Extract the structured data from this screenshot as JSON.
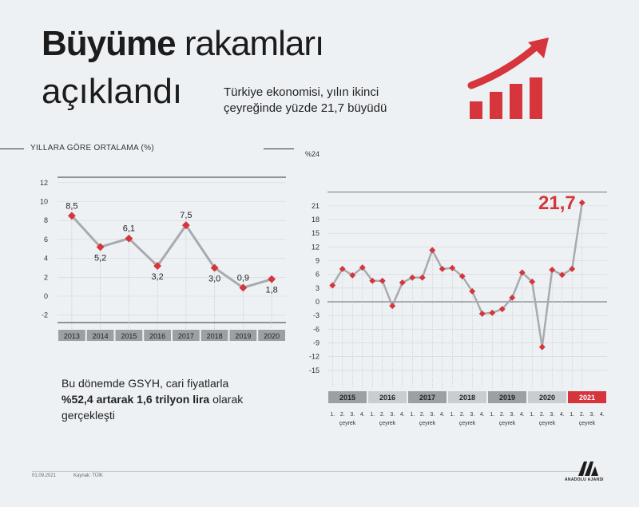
{
  "header": {
    "title_bold": "Büyüme",
    "title_rest": "rakamları",
    "title_line2": "açıklandı",
    "subtitle": "Türkiye ekonomisi, yılın ikinci çeyreğinde yüzde 21,7 büyüdü"
  },
  "colors": {
    "accent": "#d5353b",
    "line": "#a7abb0",
    "band_dark": "#9c9fa3",
    "band_light": "#c9ccd0",
    "band_2021": "#d5353b"
  },
  "note": {
    "part1": "Bu dönemde GSYH, cari fiyatlarla ",
    "bold": "%52,4 artarak 1,6 trilyon lira",
    "part2": " olarak gerçekleşti"
  },
  "footer": {
    "date": "01.09.2021",
    "source": "Kaynak: TÜİK",
    "logo_text": "ANADOLU AJANSI"
  },
  "chart_data": [
    {
      "type": "line",
      "title": "YILLARA GÖRE ORTALAMA (%)",
      "categories": [
        "2013",
        "2014",
        "2015",
        "2016",
        "2017",
        "2018",
        "2019",
        "2020"
      ],
      "values": [
        8.5,
        5.2,
        6.1,
        3.2,
        7.5,
        3.0,
        0.9,
        1.8
      ],
      "value_labels": [
        "8,5",
        "5,2",
        "6,1",
        "3,2",
        "7,5",
        "3,0",
        "0,9",
        "1,8"
      ],
      "yticks": [
        12,
        10,
        8,
        6,
        4,
        2,
        0,
        -2
      ],
      "ylim": [
        -2.5,
        12.5
      ]
    },
    {
      "type": "line",
      "ylabel_top": "%24",
      "yticks": [
        21,
        18,
        15,
        12,
        9,
        6,
        3,
        0,
        -3,
        -6,
        -9,
        -12,
        -15
      ],
      "ylim": [
        -15,
        24
      ],
      "years": [
        "2015",
        "2016",
        "2017",
        "2018",
        "2019",
        "2020",
        "2021"
      ],
      "quarter_labels": [
        "1.",
        "2.",
        "3.",
        "4."
      ],
      "quarter_word": "çeyrek",
      "values": [
        3.6,
        7.2,
        5.8,
        7.5,
        4.6,
        4.6,
        -0.9,
        4.2,
        5.3,
        5.3,
        11.3,
        7.2,
        7.4,
        5.6,
        2.3,
        -2.6,
        -2.4,
        -1.6,
        0.9,
        6.4,
        4.4,
        -9.9,
        7.0,
        5.9,
        7.2,
        21.7
      ],
      "highlight": {
        "label": "21,7",
        "value": 21.7
      }
    }
  ]
}
